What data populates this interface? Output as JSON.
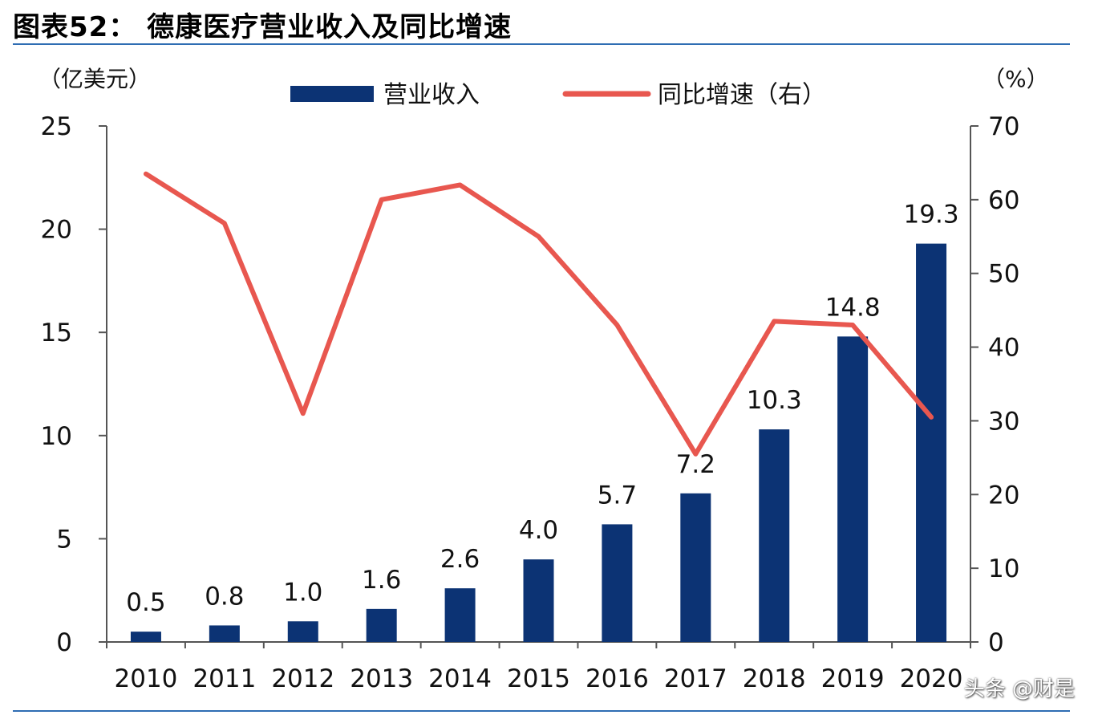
{
  "title": "图表52：   德康医疗营业收入及同比增速",
  "watermark": "头条 @财是",
  "colors": {
    "bar": "#0c3374",
    "line": "#e8574f",
    "rule": "#2f6db3"
  },
  "chart_data": {
    "type": "bar",
    "categories": [
      "2010",
      "2011",
      "2012",
      "2013",
      "2014",
      "2015",
      "2016",
      "2017",
      "2018",
      "2019",
      "2020"
    ],
    "left_unit": "（亿美元）",
    "right_unit": "（%）",
    "left_ticks": [
      "0",
      "5",
      "10",
      "15",
      "20",
      "25"
    ],
    "right_ticks": [
      "0",
      "10",
      "20",
      "30",
      "40",
      "50",
      "60",
      "70"
    ],
    "ylim_left": [
      0,
      25
    ],
    "ylim_right": [
      0,
      70
    ],
    "series": [
      {
        "name": "营业收入",
        "type": "bar",
        "axis": "left",
        "values": [
          0.5,
          0.8,
          1.0,
          1.6,
          2.6,
          4.0,
          5.7,
          7.2,
          10.3,
          14.8,
          19.3
        ],
        "labels": [
          "0.5",
          "0.8",
          "1.0",
          "1.6",
          "2.6",
          "4.0",
          "5.7",
          "7.2",
          "10.3",
          "14.8",
          "19.3"
        ]
      },
      {
        "name": "同比增速（右）",
        "type": "line",
        "axis": "right",
        "values": [
          63.5,
          56.8,
          31.0,
          60.0,
          62.0,
          55.0,
          43.0,
          25.5,
          43.5,
          43.0,
          30.5
        ]
      }
    ],
    "legend": "top-center",
    "grid": false
  }
}
